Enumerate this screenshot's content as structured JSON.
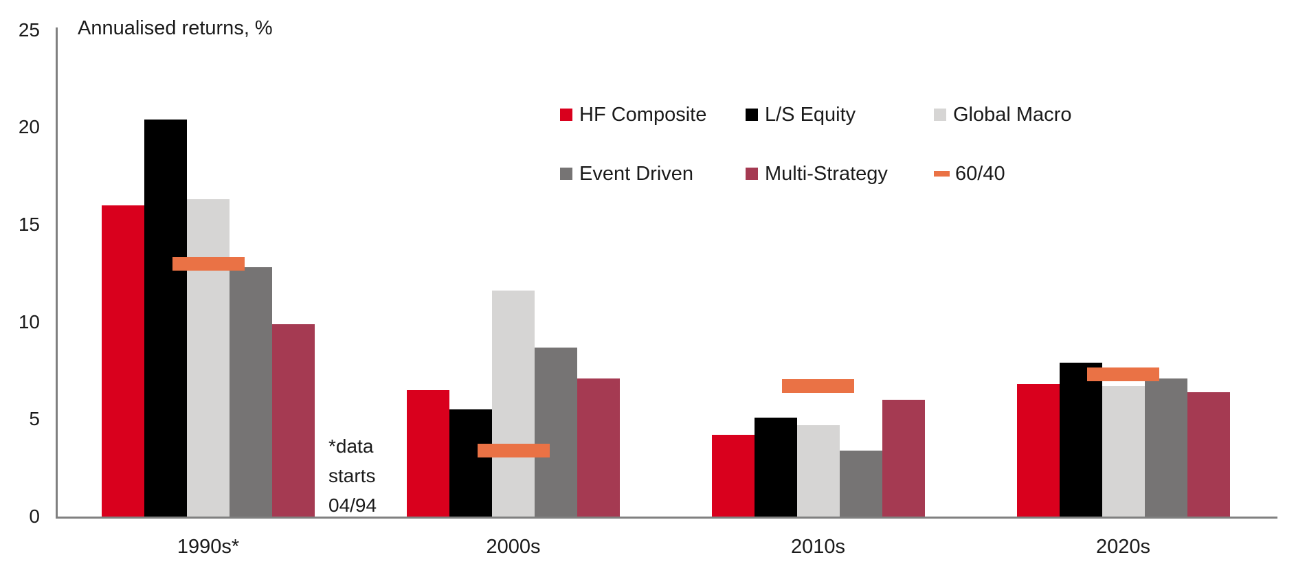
{
  "title": "Annualised returns, %",
  "annotation": {
    "lines": [
      "*data",
      "starts",
      "04/94"
    ]
  },
  "colors": {
    "hf_composite": "#d9001d",
    "ls_equity": "#000000",
    "global_macro": "#d6d5d4",
    "event_driven": "#767474",
    "multi_strategy": "#a53a52",
    "sixty_forty": "#ea7245",
    "axis": "#808080",
    "text": "#1a1a1a"
  },
  "legend": [
    {
      "label": "HF Composite",
      "color": "#d9001d",
      "marker": "square"
    },
    {
      "label": "L/S Equity",
      "color": "#000000",
      "marker": "square"
    },
    {
      "label": "Global Macro",
      "color": "#d6d5d4",
      "marker": "square"
    },
    {
      "label": "Event Driven",
      "color": "#767474",
      "marker": "square"
    },
    {
      "label": "Multi-Strategy",
      "color": "#a53a52",
      "marker": "square"
    },
    {
      "label": "60/40",
      "color": "#ea7245",
      "marker": "dash"
    }
  ],
  "chart_data": {
    "type": "bar",
    "title": "Annualised returns, %",
    "categories": [
      "1990s*",
      "2000s",
      "2010s",
      "2020s"
    ],
    "series": [
      {
        "name": "HF Composite",
        "color": "#d9001d",
        "values": [
          16.0,
          6.5,
          4.2,
          6.8
        ]
      },
      {
        "name": "L/S Equity",
        "color": "#000000",
        "values": [
          20.4,
          5.5,
          5.1,
          7.9
        ]
      },
      {
        "name": "Global Macro",
        "color": "#d6d5d4",
        "values": [
          16.3,
          11.6,
          4.7,
          6.7
        ]
      },
      {
        "name": "Event Driven",
        "color": "#767474",
        "values": [
          12.8,
          8.7,
          3.4,
          7.1
        ]
      },
      {
        "name": "Multi-Strategy",
        "color": "#a53a52",
        "values": [
          9.9,
          7.1,
          6.0,
          6.4
        ]
      }
    ],
    "marker_series": {
      "name": "60/40",
      "color": "#ea7245",
      "values": [
        13.0,
        3.4,
        6.7,
        7.3
      ]
    },
    "ylabel_inline": "Annualised returns, %",
    "ylim": [
      0,
      25
    ],
    "yticks": [
      0,
      5,
      10,
      15,
      20,
      25
    ],
    "grid": false,
    "legend_position": "upper-right-inside",
    "footnote": "*data starts 04/94"
  }
}
